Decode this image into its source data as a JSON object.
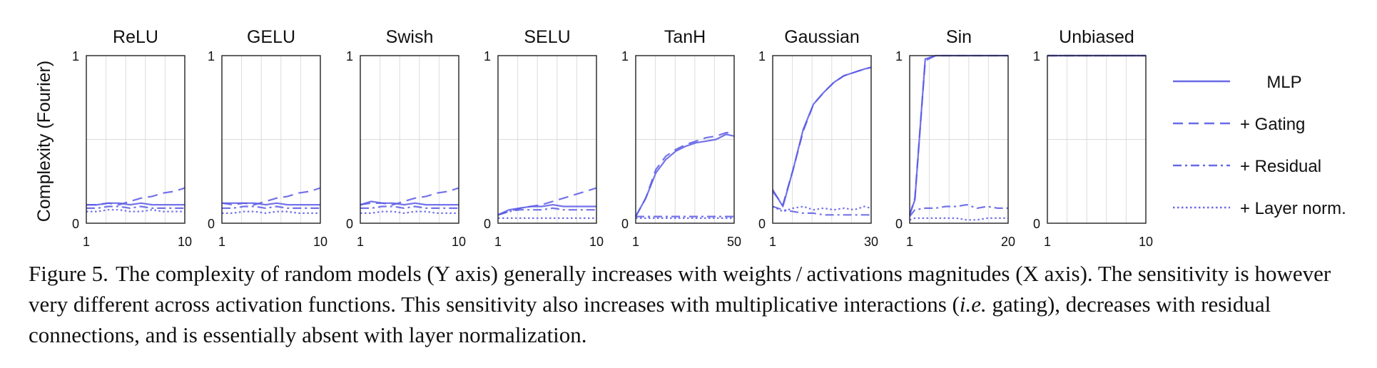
{
  "ylabel": "Complexity (Fourier)",
  "y_ticks": [
    "0",
    "1"
  ],
  "legend_entries": [
    {
      "name": "MLP",
      "style": "solid"
    },
    {
      "name": "+ Gating",
      "style": "dashed"
    },
    {
      "name": "+ Residual",
      "style": "dashdot"
    },
    {
      "name": "+ Layer norm.",
      "style": "dotted"
    }
  ],
  "line_color": "#5a5ae6",
  "chart_data": [
    {
      "type": "line",
      "title": "ReLU",
      "xlim": [
        1,
        10
      ],
      "x_ticks": [
        "1",
        "10"
      ],
      "ylim": [
        0,
        1
      ],
      "x": [
        1,
        2,
        3,
        4,
        5,
        6,
        7,
        8,
        9,
        10
      ],
      "series": [
        {
          "name": "MLP",
          "values": [
            0.11,
            0.11,
            0.12,
            0.12,
            0.11,
            0.12,
            0.11,
            0.11,
            0.11,
            0.11
          ]
        },
        {
          "name": "+ Gating",
          "values": [
            0.11,
            0.11,
            0.12,
            0.11,
            0.13,
            0.15,
            0.16,
            0.18,
            0.19,
            0.21
          ]
        },
        {
          "name": "+ Residual",
          "values": [
            0.09,
            0.09,
            0.1,
            0.1,
            0.09,
            0.1,
            0.09,
            0.09,
            0.09,
            0.09
          ]
        },
        {
          "name": "+ Layer norm.",
          "values": [
            0.07,
            0.07,
            0.08,
            0.08,
            0.07,
            0.07,
            0.08,
            0.07,
            0.07,
            0.07
          ]
        }
      ]
    },
    {
      "type": "line",
      "title": "GELU",
      "xlim": [
        1,
        10
      ],
      "x_ticks": [
        "1",
        "10"
      ],
      "ylim": [
        0,
        1
      ],
      "x": [
        1,
        2,
        3,
        4,
        5,
        6,
        7,
        8,
        9,
        10
      ],
      "series": [
        {
          "name": "MLP",
          "values": [
            0.12,
            0.12,
            0.12,
            0.12,
            0.11,
            0.12,
            0.11,
            0.11,
            0.11,
            0.11
          ]
        },
        {
          "name": "+ Gating",
          "values": [
            0.12,
            0.11,
            0.12,
            0.11,
            0.13,
            0.15,
            0.16,
            0.18,
            0.19,
            0.21
          ]
        },
        {
          "name": "+ Residual",
          "values": [
            0.09,
            0.09,
            0.1,
            0.1,
            0.09,
            0.1,
            0.09,
            0.09,
            0.09,
            0.09
          ]
        },
        {
          "name": "+ Layer norm.",
          "values": [
            0.06,
            0.06,
            0.07,
            0.07,
            0.06,
            0.07,
            0.07,
            0.06,
            0.06,
            0.06
          ]
        }
      ]
    },
    {
      "type": "line",
      "title": "Swish",
      "xlim": [
        1,
        10
      ],
      "x_ticks": [
        "1",
        "10"
      ],
      "ylim": [
        0,
        1
      ],
      "x": [
        1,
        2,
        3,
        4,
        5,
        6,
        7,
        8,
        9,
        10
      ],
      "series": [
        {
          "name": "MLP",
          "values": [
            0.11,
            0.13,
            0.12,
            0.12,
            0.11,
            0.12,
            0.11,
            0.11,
            0.11,
            0.11
          ]
        },
        {
          "name": "+ Gating",
          "values": [
            0.11,
            0.12,
            0.12,
            0.11,
            0.13,
            0.15,
            0.16,
            0.18,
            0.19,
            0.21
          ]
        },
        {
          "name": "+ Residual",
          "values": [
            0.09,
            0.09,
            0.1,
            0.1,
            0.09,
            0.1,
            0.09,
            0.09,
            0.09,
            0.09
          ]
        },
        {
          "name": "+ Layer norm.",
          "values": [
            0.06,
            0.06,
            0.07,
            0.07,
            0.06,
            0.07,
            0.07,
            0.06,
            0.06,
            0.06
          ]
        }
      ]
    },
    {
      "type": "line",
      "title": "SELU",
      "xlim": [
        1,
        10
      ],
      "x_ticks": [
        "1",
        "10"
      ],
      "ylim": [
        0,
        1
      ],
      "x": [
        1,
        2,
        3,
        4,
        5,
        6,
        7,
        8,
        9,
        10
      ],
      "series": [
        {
          "name": "MLP",
          "values": [
            0.05,
            0.08,
            0.09,
            0.1,
            0.1,
            0.11,
            0.1,
            0.1,
            0.1,
            0.1
          ]
        },
        {
          "name": "+ Gating",
          "values": [
            0.05,
            0.07,
            0.09,
            0.1,
            0.11,
            0.13,
            0.15,
            0.17,
            0.19,
            0.21
          ]
        },
        {
          "name": "+ Residual",
          "values": [
            0.05,
            0.07,
            0.08,
            0.08,
            0.08,
            0.09,
            0.08,
            0.08,
            0.08,
            0.08
          ]
        },
        {
          "name": "+ Layer norm.",
          "values": [
            0.03,
            0.03,
            0.03,
            0.03,
            0.03,
            0.03,
            0.03,
            0.03,
            0.03,
            0.03
          ]
        }
      ]
    },
    {
      "type": "line",
      "title": "TanH",
      "xlim": [
        1,
        50
      ],
      "x_ticks": [
        "1",
        "50"
      ],
      "ylim": [
        0,
        1
      ],
      "x": [
        1,
        6,
        11,
        16,
        21,
        26,
        31,
        36,
        41,
        46,
        50
      ],
      "series": [
        {
          "name": "MLP",
          "values": [
            0.04,
            0.15,
            0.3,
            0.38,
            0.43,
            0.46,
            0.48,
            0.49,
            0.5,
            0.53,
            0.52
          ]
        },
        {
          "name": "+ Gating",
          "values": [
            0.04,
            0.15,
            0.32,
            0.4,
            0.44,
            0.47,
            0.49,
            0.51,
            0.52,
            0.54,
            0.54
          ]
        },
        {
          "name": "+ Residual",
          "values": [
            0.04,
            0.04,
            0.04,
            0.04,
            0.04,
            0.04,
            0.04,
            0.04,
            0.04,
            0.04,
            0.04
          ]
        },
        {
          "name": "+ Layer norm.",
          "values": [
            0.03,
            0.03,
            0.03,
            0.03,
            0.03,
            0.03,
            0.03,
            0.03,
            0.03,
            0.03,
            0.03
          ]
        }
      ]
    },
    {
      "type": "line",
      "title": "Gaussian",
      "xlim": [
        1,
        30
      ],
      "x_ticks": [
        "1",
        "30"
      ],
      "ylim": [
        0,
        1
      ],
      "x": [
        1,
        4,
        7,
        10,
        13,
        16,
        19,
        22,
        25,
        28,
        30
      ],
      "series": [
        {
          "name": "MLP",
          "values": [
            0.2,
            0.1,
            0.32,
            0.56,
            0.71,
            0.78,
            0.84,
            0.88,
            0.9,
            0.92,
            0.93
          ]
        },
        {
          "name": "+ Gating",
          "values": [
            0.19,
            0.11,
            0.32,
            0.55,
            0.71,
            0.78,
            0.84,
            0.88,
            0.9,
            0.92,
            0.93
          ]
        },
        {
          "name": "+ Residual",
          "values": [
            0.1,
            0.08,
            0.07,
            0.06,
            0.06,
            0.05,
            0.05,
            0.05,
            0.05,
            0.05,
            0.05
          ]
        },
        {
          "name": "+ Layer norm.",
          "values": [
            0.1,
            0.07,
            0.09,
            0.1,
            0.08,
            0.09,
            0.08,
            0.09,
            0.08,
            0.1,
            0.09
          ]
        }
      ]
    },
    {
      "type": "line",
      "title": "Sin",
      "xlim": [
        1,
        20
      ],
      "x_ticks": [
        "1",
        "20"
      ],
      "ylim": [
        0,
        1
      ],
      "x": [
        1,
        2,
        4,
        6,
        8,
        10,
        12,
        14,
        16,
        18,
        20
      ],
      "series": [
        {
          "name": "MLP",
          "values": [
            0.05,
            0.14,
            0.98,
            1.0,
            1.0,
            1.0,
            1.0,
            1.0,
            1.0,
            1.0,
            1.0
          ]
        },
        {
          "name": "+ Gating",
          "values": [
            0.05,
            0.15,
            0.97,
            1.0,
            1.0,
            1.0,
            1.0,
            1.0,
            1.0,
            1.0,
            1.0
          ]
        },
        {
          "name": "+ Residual",
          "values": [
            0.04,
            0.08,
            0.09,
            0.09,
            0.1,
            0.1,
            0.11,
            0.09,
            0.1,
            0.09,
            0.09
          ]
        },
        {
          "name": "+ Layer norm.",
          "values": [
            0.02,
            0.03,
            0.03,
            0.03,
            0.03,
            0.03,
            0.02,
            0.02,
            0.03,
            0.03,
            0.03
          ]
        }
      ]
    },
    {
      "type": "line",
      "title": "Unbiased",
      "xlim": [
        1,
        10
      ],
      "x_ticks": [
        "1",
        "10"
      ],
      "ylim": [
        0,
        1
      ],
      "x": [
        1,
        2,
        3,
        4,
        5,
        6,
        7,
        8,
        9,
        10
      ],
      "series": [
        {
          "name": "MLP",
          "values": [
            1,
            1,
            1,
            1,
            1,
            1,
            1,
            1,
            1,
            1
          ]
        },
        {
          "name": "+ Gating",
          "values": [
            1,
            1,
            1,
            1,
            1,
            1,
            1,
            1,
            1,
            1
          ]
        },
        {
          "name": "+ Residual",
          "values": [
            1,
            1,
            1,
            1,
            1,
            1,
            1,
            1,
            1,
            1
          ]
        },
        {
          "name": "+ Layer norm.",
          "values": [
            1,
            1,
            1,
            1,
            1,
            1,
            1,
            1,
            1,
            1
          ]
        }
      ]
    }
  ],
  "caption": {
    "label": "Figure 5.",
    "part1": "The complexity of random models (Y axis) generally increases with weights / activations magnitudes (X axis). The sensitivity is however very different across activation functions. This sensitivity also increases with multiplicative interactions (",
    "italic": "i.e.",
    "part2": " gating), decreases with residual connections, and is essentially absent with layer normalization."
  }
}
